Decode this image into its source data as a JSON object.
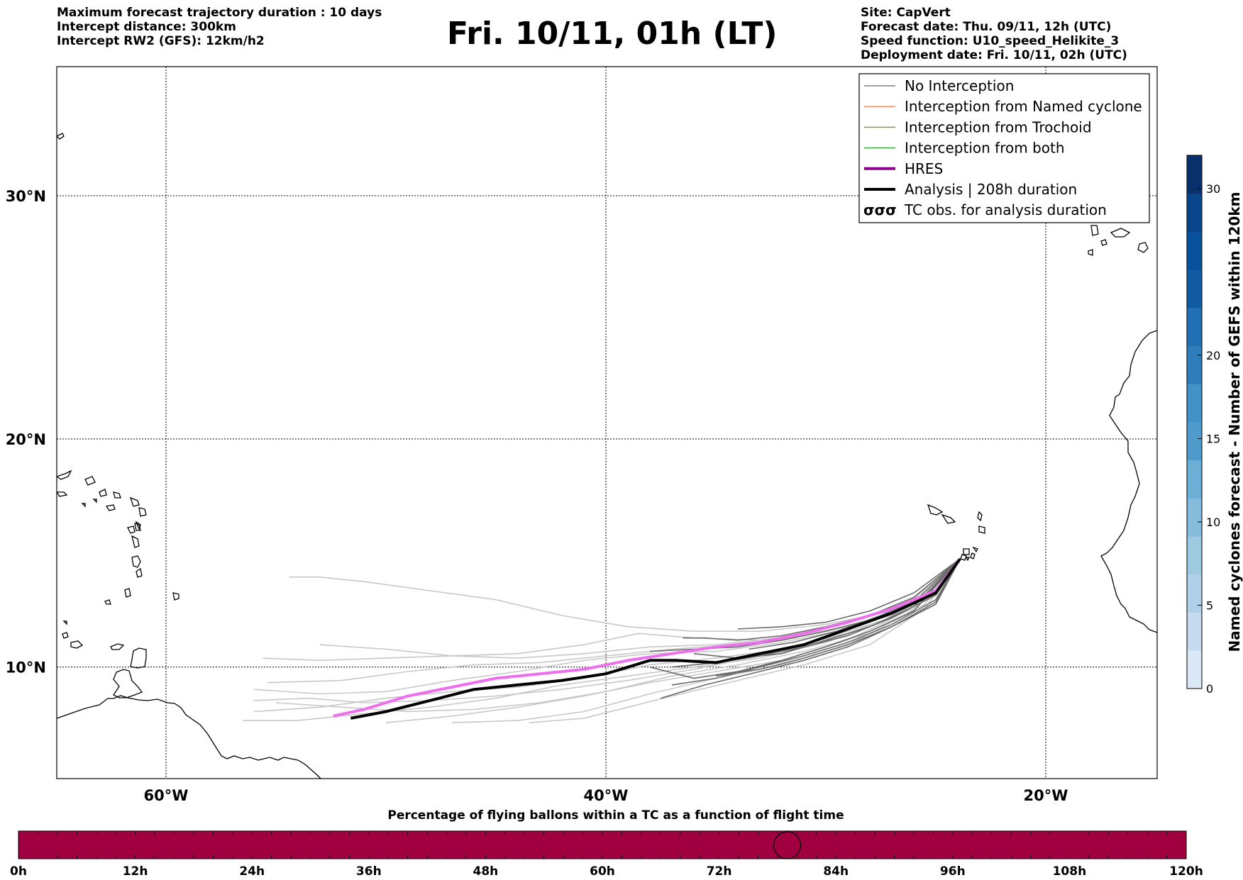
{
  "header_left": [
    "Maximum forecast trajectory duration : 10 days",
    "Intercept distance: 300km",
    "Intercept RW2 (GFS):  12km/h2"
  ],
  "title": "Fri. 10/11, 01h (LT)",
  "header_right": [
    "Site: CapVert",
    "Forecast date: Thu. 09/11, 12h (UTC)",
    "Speed function: U10_speed_Helikite_3",
    "Deployment date: Fri. 10/11, 02h (UTC)"
  ],
  "map": {
    "lat_labels": [
      "30°N",
      "20°N",
      "10°N"
    ],
    "lon_labels": [
      "60°W",
      "40°W",
      "20°W"
    ],
    "lat_lines": [
      30,
      20,
      10
    ],
    "lon_lines": [
      -60,
      -40,
      -20
    ]
  },
  "legend": [
    {
      "label": "No Interception",
      "color": "#808080",
      "kind": "line"
    },
    {
      "label": "Interception from Named cyclone",
      "color": "#ff7f50",
      "kind": "line"
    },
    {
      "label": "Interception from Trochoid",
      "color": "#9b8b2f",
      "kind": "line"
    },
    {
      "label": "Interception from both",
      "color": "#2ca02c",
      "kind": "line"
    },
    {
      "label": "HRES",
      "color": "#8b008b",
      "kind": "thick"
    },
    {
      "label": "Analysis | 208h duration",
      "color": "#000000",
      "kind": "thick"
    },
    {
      "label": "TC obs. for analysis duration",
      "color": "#000000",
      "kind": "tc"
    }
  ],
  "colorbar": {
    "label": "Named cyclones forecast - Number of GEFS within 120km",
    "ticks": [
      "0",
      "5",
      "10",
      "15",
      "20",
      "30"
    ],
    "colors": [
      "#dbe8f5",
      "#c6dbef",
      "#b0d0e8",
      "#9ecae1",
      "#85bcdc",
      "#6baed6",
      "#4f9bcb",
      "#4292c6",
      "#2f7ebc",
      "#2171b5",
      "#115ca5",
      "#08519c",
      "#08458a",
      "#08306b"
    ]
  },
  "bottom_bar": {
    "title": "Percentage of flying ballons within a TC as a function of flight time",
    "ticks": [
      "0h",
      "12h",
      "24h",
      "36h",
      "48h",
      "60h",
      "72h",
      "84h",
      "96h",
      "108h",
      "120h"
    ],
    "color": "#a00040",
    "marker_hour": 79
  },
  "hres_track": [
    [
      -52.4,
      7.8
    ],
    [
      -51.0,
      8.1
    ],
    [
      -49.0,
      8.7
    ],
    [
      -47.0,
      9.1
    ],
    [
      -45.0,
      9.5
    ],
    [
      -43.0,
      9.7
    ],
    [
      -41.0,
      9.9
    ],
    [
      -39.0,
      10.3
    ],
    [
      -37.0,
      10.6
    ],
    [
      -35.0,
      10.9
    ],
    [
      -33.0,
      11.1
    ],
    [
      -31.0,
      11.5
    ],
    [
      -29.0,
      12.0
    ],
    [
      -27.0,
      12.6
    ],
    [
      -25.0,
      13.4
    ],
    [
      -23.9,
      14.8
    ]
  ],
  "analysis_track": [
    [
      -51.6,
      7.7
    ],
    [
      -50.0,
      8.0
    ],
    [
      -48.0,
      8.5
    ],
    [
      -46.0,
      9.0
    ],
    [
      -44.0,
      9.2
    ],
    [
      -42.0,
      9.4
    ],
    [
      -40.0,
      9.7
    ],
    [
      -38.0,
      10.3
    ],
    [
      -36.8,
      10.3
    ],
    [
      -35.0,
      10.2
    ],
    [
      -33.0,
      10.6
    ],
    [
      -31.0,
      11.0
    ],
    [
      -29.0,
      11.7
    ],
    [
      -27.0,
      12.4
    ],
    [
      -25.0,
      13.3
    ],
    [
      -23.9,
      14.8
    ]
  ],
  "ensemble_tracks": [
    [
      [
        -55.6,
        10.4
      ],
      [
        -53.0,
        10.3
      ],
      [
        -50.0,
        10.4
      ],
      [
        -47.0,
        10.5
      ],
      [
        -44.0,
        10.4
      ],
      [
        -41.0,
        10.6
      ],
      [
        -38.0,
        10.9
      ],
      [
        -35.0,
        11.0
      ],
      [
        -32.0,
        11.3
      ],
      [
        -29.0,
        11.8
      ],
      [
        -27.0,
        12.4
      ],
      [
        -25.0,
        13.3
      ],
      [
        -23.9,
        14.8
      ]
    ],
    [
      [
        -55.4,
        9.3
      ],
      [
        -52.0,
        9.4
      ],
      [
        -49.0,
        9.8
      ],
      [
        -46.0,
        10.1
      ],
      [
        -43.0,
        10.2
      ],
      [
        -40.0,
        10.5
      ],
      [
        -37.0,
        10.8
      ],
      [
        -34.0,
        11.0
      ],
      [
        -31.0,
        11.4
      ],
      [
        -28.0,
        12.0
      ],
      [
        -26.0,
        12.8
      ],
      [
        -23.9,
        14.8
      ]
    ],
    [
      [
        -54.4,
        14.0
      ],
      [
        -53.0,
        14.0
      ],
      [
        -51.0,
        13.8
      ],
      [
        -48.0,
        13.4
      ],
      [
        -45.0,
        13.0
      ],
      [
        -42.0,
        12.3
      ],
      [
        -39.0,
        11.8
      ],
      [
        -36.0,
        11.6
      ],
      [
        -33.0,
        11.6
      ],
      [
        -30.0,
        11.9
      ],
      [
        -27.0,
        12.5
      ],
      [
        -25.0,
        13.3
      ],
      [
        -23.9,
        14.8
      ]
    ],
    [
      [
        -56.0,
        9.0
      ],
      [
        -53.0,
        8.8
      ],
      [
        -50.0,
        8.9
      ],
      [
        -47.0,
        9.4
      ],
      [
        -44.0,
        9.8
      ],
      [
        -41.0,
        10.3
      ],
      [
        -38.0,
        10.6
      ],
      [
        -35.0,
        10.7
      ],
      [
        -32.0,
        11.1
      ],
      [
        -29.0,
        11.7
      ],
      [
        -26.5,
        12.7
      ],
      [
        -23.9,
        14.8
      ]
    ],
    [
      [
        -56.0,
        8.0
      ],
      [
        -53.0,
        8.2
      ],
      [
        -50.0,
        8.6
      ],
      [
        -47.0,
        8.9
      ],
      [
        -44.0,
        9.1
      ],
      [
        -41.0,
        9.5
      ],
      [
        -38.0,
        10.1
      ],
      [
        -35.0,
        10.4
      ],
      [
        -32.0,
        10.8
      ],
      [
        -29.0,
        11.5
      ],
      [
        -26.0,
        12.6
      ],
      [
        -23.9,
        14.8
      ]
    ],
    [
      [
        -56.5,
        7.6
      ],
      [
        -54.0,
        7.6
      ],
      [
        -51.0,
        7.9
      ],
      [
        -48.0,
        8.2
      ],
      [
        -45.0,
        8.6
      ],
      [
        -42.0,
        9.2
      ],
      [
        -39.0,
        9.6
      ],
      [
        -36.0,
        10.0
      ],
      [
        -33.0,
        10.4
      ],
      [
        -30.0,
        11.1
      ],
      [
        -27.0,
        12.2
      ],
      [
        -23.9,
        14.8
      ]
    ],
    [
      [
        -55.0,
        8.4
      ],
      [
        -52.0,
        8.2
      ],
      [
        -49.0,
        8.0
      ],
      [
        -46.0,
        8.1
      ],
      [
        -43.0,
        8.4
      ],
      [
        -40.0,
        8.9
      ],
      [
        -37.0,
        9.6
      ],
      [
        -34.0,
        10.1
      ],
      [
        -31.0,
        10.7
      ],
      [
        -28.0,
        11.5
      ],
      [
        -25.5,
        12.8
      ],
      [
        -23.9,
        14.8
      ]
    ],
    [
      [
        -50.0,
        7.5
      ],
      [
        -47.0,
        7.8
      ],
      [
        -44.0,
        8.2
      ],
      [
        -41.0,
        8.7
      ],
      [
        -38.0,
        9.3
      ],
      [
        -35.0,
        9.8
      ],
      [
        -32.0,
        10.3
      ],
      [
        -29.0,
        11.2
      ],
      [
        -26.5,
        12.4
      ],
      [
        -23.9,
        14.8
      ]
    ],
    [
      [
        -47.0,
        7.5
      ],
      [
        -44.0,
        7.6
      ],
      [
        -41.0,
        8.0
      ],
      [
        -38.0,
        8.8
      ],
      [
        -35.0,
        9.5
      ],
      [
        -32.0,
        10.1
      ],
      [
        -29.0,
        11.0
      ],
      [
        -26.0,
        12.5
      ],
      [
        -23.9,
        14.8
      ]
    ],
    [
      [
        -43.5,
        7.5
      ],
      [
        -41.0,
        7.7
      ],
      [
        -39.0,
        8.2
      ],
      [
        -37.0,
        8.7
      ],
      [
        -34.0,
        9.4
      ],
      [
        -31.0,
        10.1
      ],
      [
        -28.0,
        11.0
      ],
      [
        -25.5,
        12.6
      ],
      [
        -23.9,
        14.8
      ]
    ],
    [
      [
        -53.0,
        11.0
      ],
      [
        -50.0,
        10.8
      ],
      [
        -47.0,
        10.5
      ],
      [
        -44.0,
        10.6
      ],
      [
        -41.0,
        11.0
      ],
      [
        -38.5,
        11.5
      ],
      [
        -36.0,
        11.3
      ],
      [
        -33.0,
        11.2
      ],
      [
        -30.0,
        11.6
      ],
      [
        -27.0,
        12.3
      ],
      [
        -25.0,
        13.2
      ],
      [
        -23.9,
        14.8
      ]
    ],
    [
      [
        -56.0,
        8.5
      ],
      [
        -53.5,
        8.6
      ],
      [
        -51.0,
        8.4
      ],
      [
        -48.0,
        8.5
      ],
      [
        -45.0,
        8.7
      ],
      [
        -42.0,
        9.0
      ],
      [
        -39.0,
        9.4
      ],
      [
        -36.0,
        9.9
      ],
      [
        -33.0,
        10.5
      ],
      [
        -30.0,
        11.3
      ],
      [
        -27.0,
        12.2
      ],
      [
        -23.9,
        14.8
      ]
    ]
  ],
  "dark_tracks": [
    [
      [
        -37.0,
        10.0
      ],
      [
        -35.0,
        10.2
      ],
      [
        -33.0,
        10.5
      ],
      [
        -31.0,
        10.9
      ],
      [
        -29.0,
        11.4
      ],
      [
        -27.0,
        12.2
      ],
      [
        -25.0,
        13.2
      ],
      [
        -23.9,
        14.8
      ]
    ],
    [
      [
        -38.0,
        10.7
      ],
      [
        -36.0,
        10.8
      ],
      [
        -34.0,
        10.9
      ],
      [
        -32.0,
        11.2
      ],
      [
        -30.0,
        11.6
      ],
      [
        -28.0,
        12.1
      ],
      [
        -26.0,
        12.9
      ],
      [
        -23.9,
        14.8
      ]
    ],
    [
      [
        -36.5,
        11.3
      ],
      [
        -35.5,
        11.3
      ],
      [
        -34.0,
        11.2
      ],
      [
        -32.0,
        11.4
      ],
      [
        -30.0,
        11.8
      ],
      [
        -28.0,
        12.3
      ],
      [
        -26.0,
        13.1
      ],
      [
        -23.9,
        14.8
      ]
    ],
    [
      [
        -38.0,
        10.0
      ],
      [
        -36.0,
        9.5
      ],
      [
        -34.0,
        9.8
      ],
      [
        -32.0,
        10.3
      ],
      [
        -30.0,
        10.9
      ],
      [
        -28.0,
        11.6
      ],
      [
        -26.0,
        12.5
      ],
      [
        -23.9,
        14.8
      ]
    ],
    [
      [
        -37.0,
        9.2
      ],
      [
        -35.0,
        9.5
      ],
      [
        -33.0,
        10.0
      ],
      [
        -31.0,
        10.5
      ],
      [
        -29.0,
        11.1
      ],
      [
        -27.0,
        11.9
      ],
      [
        -25.0,
        13.0
      ],
      [
        -23.9,
        14.8
      ]
    ],
    [
      [
        -37.5,
        8.6
      ],
      [
        -35.5,
        9.2
      ],
      [
        -33.0,
        9.8
      ],
      [
        -31.0,
        10.3
      ],
      [
        -29.0,
        10.9
      ],
      [
        -27.0,
        11.8
      ],
      [
        -25.0,
        12.9
      ],
      [
        -23.9,
        14.8
      ]
    ],
    [
      [
        -36.0,
        10.6
      ],
      [
        -34.0,
        10.4
      ],
      [
        -32.0,
        10.6
      ],
      [
        -30.0,
        11.2
      ],
      [
        -28.0,
        11.8
      ],
      [
        -26.0,
        12.7
      ],
      [
        -23.9,
        14.8
      ]
    ],
    [
      [
        -35.0,
        9.6
      ],
      [
        -33.0,
        9.9
      ],
      [
        -31.0,
        10.4
      ],
      [
        -29.0,
        11.0
      ],
      [
        -27.0,
        11.8
      ],
      [
        -25.0,
        12.8
      ],
      [
        -23.9,
        14.8
      ]
    ],
    [
      [
        -33.5,
        10.8
      ],
      [
        -31.5,
        11.1
      ],
      [
        -29.5,
        11.6
      ],
      [
        -27.5,
        12.3
      ],
      [
        -25.5,
        13.1
      ],
      [
        -23.9,
        14.8
      ]
    ],
    [
      [
        -34.0,
        11.7
      ],
      [
        -32.0,
        11.8
      ],
      [
        -30.0,
        12.0
      ],
      [
        -28.0,
        12.5
      ],
      [
        -26.0,
        13.3
      ],
      [
        -23.9,
        14.8
      ]
    ]
  ]
}
